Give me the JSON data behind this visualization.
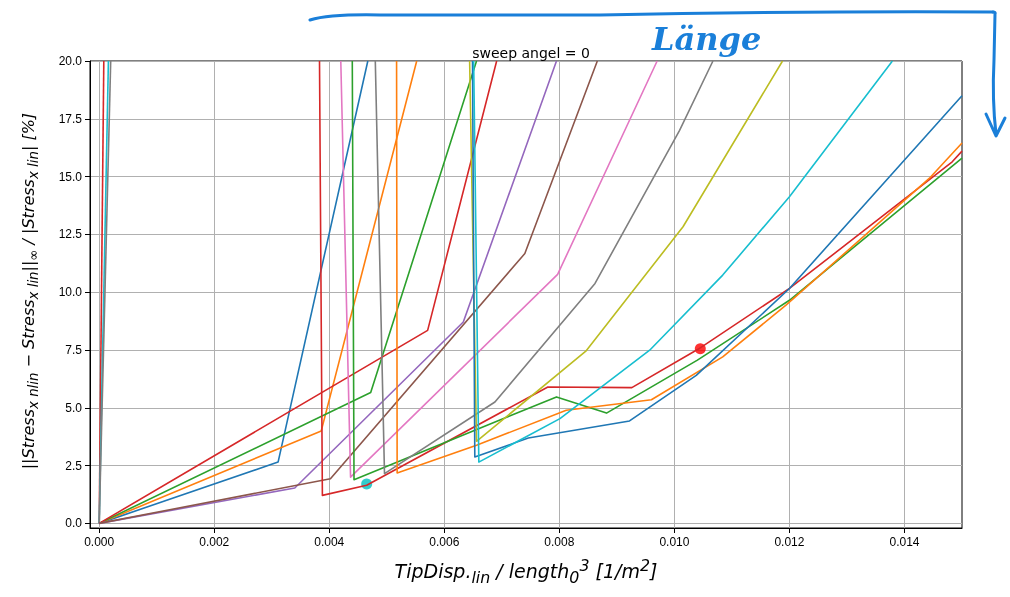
{
  "chart_data": {
    "type": "line",
    "title": "sweep angel = 0",
    "xlabel": "TipDisp.$_{lin}$ / length$_{0}$$^{3}$ [1/m$^{2}$]",
    "ylabel": "||Stress$_{x nlin}$ − Stress$_{x lin}$||$_{∞}$ / |Stress$_{x lin}$| [%]",
    "annotations": [
      "Länge"
    ],
    "xlim": [
      -0.00016,
      0.015
    ],
    "ylim": [
      -0.2,
      20
    ],
    "xticks": [
      {
        "value": 0,
        "label": "0.000"
      },
      {
        "value": 0.002,
        "label": "0.002"
      },
      {
        "value": 0.004,
        "label": "0.004"
      },
      {
        "value": 0.006,
        "label": "0.006"
      },
      {
        "value": 0.008,
        "label": "0.008"
      },
      {
        "value": 0.01,
        "label": "0.010"
      },
      {
        "value": 0.012,
        "label": "0.012"
      },
      {
        "value": 0.014,
        "label": "0.014"
      }
    ],
    "yticks": [
      {
        "value": 0,
        "label": "0.0"
      },
      2.5,
      {
        "value": 5,
        "label": "5.0"
      },
      7.5,
      {
        "value": 10,
        "label": "10.0"
      },
      12.5,
      {
        "value": 15,
        "label": "15.0"
      },
      17.5,
      {
        "value": 20,
        "label": "20.0"
      }
    ],
    "grid": true,
    "marker": "none",
    "line_style": "solid",
    "series": [
      {
        "color": "#d62728",
        "x": [
          0,
          8e-05
        ],
        "values": [
          0,
          20
        ]
      },
      {
        "color": "#17becf",
        "x": [
          0,
          0.00016
        ],
        "values": [
          0,
          20
        ]
      },
      {
        "color": "#7f7f7f",
        "x": [
          0,
          0.0002
        ],
        "values": [
          0,
          20
        ]
      },
      {
        "color": "#1f77b4",
        "x": [
          0,
          0.00311,
          0.00467
        ],
        "values": [
          0,
          2.65,
          20
        ]
      },
      {
        "color": "#ff7f0e",
        "x": [
          0,
          0.00386,
          0.00552
        ],
        "values": [
          0,
          4.0,
          20
        ]
      },
      {
        "color": "#2ca02c",
        "x": [
          0,
          0.00472,
          0.00656
        ],
        "values": [
          0,
          5.66,
          20
        ]
      },
      {
        "color": "#d62728",
        "x": [
          0,
          0.00571,
          0.00691
        ],
        "values": [
          0,
          8.35,
          20
        ]
      },
      {
        "color": "#9467bd",
        "x": [
          0,
          0.0034,
          0.00633,
          0.00795
        ],
        "values": [
          0,
          1.53,
          8.71,
          20
        ]
      },
      {
        "color": "#8c564b",
        "x": [
          0,
          0.00402,
          0.0074,
          0.00866
        ],
        "values": [
          0,
          1.93,
          11.67,
          20
        ]
      },
      {
        "color": "#d62728",
        "x": [
          0.00383,
          0.00388,
          0.00465,
          0.0078,
          0.00926,
          0.01041,
          0.012,
          0.01483,
          0.015
        ],
        "values": [
          20,
          1.21,
          1.65,
          5.9,
          5.87,
          7.53,
          10.16,
          15.64,
          16.1
        ]
      },
      {
        "color": "#e377c2",
        "x": [
          0.0042,
          0.00437,
          0.00797,
          0.0097
        ],
        "values": [
          20,
          2.0,
          10.77,
          20
        ]
      },
      {
        "color": "#2ca02c",
        "x": [
          0.0044,
          0.00443,
          0.00795,
          0.00882,
          0.0104,
          0.012,
          0.015
        ],
        "values": [
          20,
          1.89,
          5.47,
          4.77,
          7.06,
          9.65,
          15.8
        ]
      },
      {
        "color": "#7f7f7f",
        "x": [
          0.0048,
          0.00496,
          0.00688,
          0.00862,
          0.01009,
          0.01067
        ],
        "values": [
          20,
          2.15,
          5.25,
          10.38,
          17.0,
          20
        ]
      },
      {
        "color": "#ff7f0e",
        "x": [
          0.00517,
          0.00518,
          0.00656,
          0.00812,
          0.0096,
          0.01084,
          0.01194,
          0.01443,
          0.015
        ],
        "values": [
          20,
          2.18,
          3.38,
          4.89,
          5.35,
          7.2,
          9.44,
          14.92,
          16.45
        ]
      },
      {
        "color": "#bcbd22",
        "x": [
          0.00644,
          0.00656,
          0.00846,
          0.01015,
          0.01188
        ],
        "values": [
          20,
          3.55,
          7.45,
          12.83,
          20
        ]
      },
      {
        "color": "#1f77b4",
        "x": [
          0.00649,
          0.00653,
          0.00746,
          0.00922,
          0.01038,
          0.012,
          0.015
        ],
        "values": [
          20,
          2.87,
          3.69,
          4.43,
          6.4,
          10.16,
          18.5
        ]
      },
      {
        "color": "#17becf",
        "x": [
          0.00651,
          0.0066,
          0.00801,
          0.00957,
          0.01084,
          0.012,
          0.01379
        ],
        "values": [
          20,
          2.65,
          4.53,
          7.49,
          10.74,
          14.13,
          20
        ]
      },
      {
        "type": "scatter",
        "marker": "circle",
        "color": "#ff0000",
        "x": [
          0.01045
        ],
        "values": [
          7.55
        ]
      },
      {
        "type": "scatter",
        "marker": "circle",
        "color": "#00bfbf",
        "x": [
          0.00465
        ],
        "values": [
          1.7
        ]
      }
    ]
  }
}
